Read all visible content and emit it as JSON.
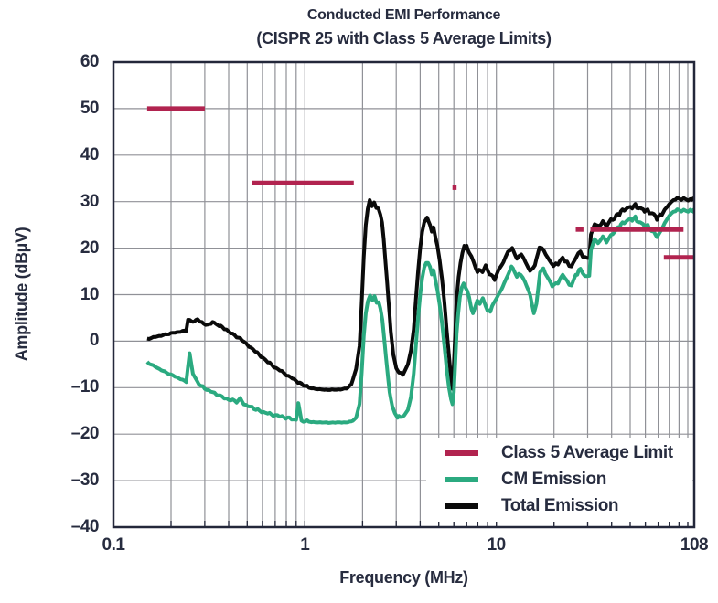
{
  "figure": {
    "title": "Conducted EMI Performance",
    "subtitle": "(CISPR 25 with Class 5 Average Limits)"
  },
  "chart_data": {
    "type": "line",
    "title": "Conducted EMI Performance",
    "subtitle": "(CISPR 25 with Class 5 Average Limits)",
    "xlabel": "Frequency (MHz)",
    "ylabel": "Amplitude (dBµV)",
    "x_scale": "log",
    "xlim": [
      0.1,
      108
    ],
    "ylim": [
      -40,
      60
    ],
    "grid": true,
    "colors": {
      "limit": "#b1234f",
      "cm": "#2baa80",
      "total": "#0a0a0a",
      "text": "#272c3f",
      "grid": "#909197",
      "axis": "#23273a"
    },
    "x_ticks": [
      {
        "value": 0.1,
        "label": "0.1"
      },
      {
        "value": 1,
        "label": "1"
      },
      {
        "value": 10,
        "label": "10"
      },
      {
        "value": 108,
        "label": "108"
      }
    ],
    "y_ticks": [
      {
        "value": 60,
        "label": "60"
      },
      {
        "value": 50,
        "label": "50"
      },
      {
        "value": 40,
        "label": "40"
      },
      {
        "value": 30,
        "label": "30"
      },
      {
        "value": 20,
        "label": "20"
      },
      {
        "value": 10,
        "label": "10"
      },
      {
        "value": 0,
        "label": "0"
      },
      {
        "value": -10,
        "label": "–10"
      },
      {
        "value": -20,
        "label": "–20"
      },
      {
        "value": -30,
        "label": "–30"
      },
      {
        "value": -40,
        "label": "–40"
      }
    ],
    "legend_position": "bottom-right-inside",
    "legend": [
      {
        "label": "Class 5 Average Limit",
        "color": "#b1234f"
      },
      {
        "label": "CM Emission",
        "color": "#2baa80"
      },
      {
        "label": "Total Emission",
        "color": "#0a0a0a"
      }
    ],
    "limit_segments": [
      {
        "from": 0.15,
        "to": 0.3,
        "level": 50
      },
      {
        "from": 0.53,
        "to": 1.8,
        "level": 34
      },
      {
        "from": 5.9,
        "to": 6.2,
        "level": 33
      },
      {
        "from": 26,
        "to": 28.5,
        "level": 24
      },
      {
        "from": 31,
        "to": 95,
        "level": 24
      },
      {
        "from": 75,
        "to": 108,
        "level": 18
      }
    ],
    "series": [
      {
        "name": "Total Emission",
        "color": "#0a0a0a",
        "points": [
          [
            0.15,
            0.5
          ],
          [
            0.17,
            1.0
          ],
          [
            0.19,
            1.5
          ],
          [
            0.22,
            2.0
          ],
          [
            0.24,
            2.3
          ],
          [
            0.245,
            4.6
          ],
          [
            0.26,
            4.2
          ],
          [
            0.275,
            4.6
          ],
          [
            0.29,
            4.0
          ],
          [
            0.31,
            3.4
          ],
          [
            0.33,
            4.1
          ],
          [
            0.35,
            3.5
          ],
          [
            0.37,
            3.0
          ],
          [
            0.4,
            2.2
          ],
          [
            0.42,
            1.4
          ],
          [
            0.44,
            1.0
          ],
          [
            0.47,
            0.2
          ],
          [
            0.51,
            -1.0
          ],
          [
            0.55,
            -2.2
          ],
          [
            0.59,
            -3.2
          ],
          [
            0.64,
            -4.5
          ],
          [
            0.69,
            -5.5
          ],
          [
            0.74,
            -6.3
          ],
          [
            0.8,
            -7.2
          ],
          [
            0.86,
            -8.0
          ],
          [
            0.92,
            -8.8
          ],
          [
            0.98,
            -9.4
          ],
          [
            1.05,
            -10.0
          ],
          [
            1.2,
            -10.4
          ],
          [
            1.35,
            -10.5
          ],
          [
            1.5,
            -10.4
          ],
          [
            1.65,
            -10.2
          ],
          [
            1.75,
            -9.3
          ],
          [
            1.85,
            -6.0
          ],
          [
            1.93,
            -1.0
          ],
          [
            1.98,
            8.0
          ],
          [
            2.03,
            18.0
          ],
          [
            2.08,
            25.0
          ],
          [
            2.13,
            28.5
          ],
          [
            2.18,
            30.3
          ],
          [
            2.24,
            29.0
          ],
          [
            2.3,
            29.8
          ],
          [
            2.36,
            28.6
          ],
          [
            2.42,
            28.9
          ],
          [
            2.48,
            27.2
          ],
          [
            2.53,
            25.5
          ],
          [
            2.58,
            22.0
          ],
          [
            2.65,
            16.0
          ],
          [
            2.73,
            9.0
          ],
          [
            2.81,
            2.0
          ],
          [
            2.9,
            -3.0
          ],
          [
            3.0,
            -5.8
          ],
          [
            3.1,
            -6.8
          ],
          [
            3.2,
            -7.0
          ],
          [
            3.3,
            -6.7
          ],
          [
            3.45,
            -5.0
          ],
          [
            3.58,
            -2.0
          ],
          [
            3.7,
            2.5
          ],
          [
            3.8,
            9.0
          ],
          [
            3.9,
            15.0
          ],
          [
            4.0,
            20.0
          ],
          [
            4.1,
            23.5
          ],
          [
            4.2,
            25.5
          ],
          [
            4.35,
            26.6
          ],
          [
            4.5,
            25.0
          ],
          [
            4.6,
            23.5
          ],
          [
            4.7,
            24.5
          ],
          [
            4.8,
            22.5
          ],
          [
            4.92,
            20.5
          ],
          [
            5.05,
            17.5
          ],
          [
            5.2,
            13.5
          ],
          [
            5.35,
            8.5
          ],
          [
            5.5,
            2.5
          ],
          [
            5.65,
            -3.0
          ],
          [
            5.8,
            -8.0
          ],
          [
            5.9,
            -10.2
          ],
          [
            6.0,
            -5.0
          ],
          [
            6.1,
            2.0
          ],
          [
            6.2,
            9.0
          ],
          [
            6.35,
            13.8
          ],
          [
            6.5,
            16.8
          ],
          [
            6.65,
            19.0
          ],
          [
            6.8,
            20.5
          ],
          [
            7.0,
            20.3
          ],
          [
            7.2,
            19.0
          ],
          [
            7.4,
            18.4
          ],
          [
            7.8,
            15.7
          ],
          [
            8.3,
            14.8
          ],
          [
            8.8,
            16.1
          ],
          [
            9.2,
            14.4
          ],
          [
            9.8,
            13.4
          ],
          [
            10.3,
            15.4
          ],
          [
            10.9,
            17.0
          ],
          [
            11.5,
            19.3
          ],
          [
            12.1,
            20.0
          ],
          [
            12.8,
            17.7
          ],
          [
            13.5,
            18.7
          ],
          [
            14.2,
            17.0
          ],
          [
            15.0,
            15.1
          ],
          [
            15.9,
            16.4
          ],
          [
            16.8,
            20.2
          ],
          [
            17.7,
            19.3
          ],
          [
            18.9,
            17.4
          ],
          [
            19.9,
            16.1
          ],
          [
            21.0,
            16.7
          ],
          [
            22.2,
            18.0
          ],
          [
            23.4,
            17.0
          ],
          [
            24.7,
            16.1
          ],
          [
            26.1,
            18.0
          ],
          [
            27.5,
            19.0
          ],
          [
            29.0,
            18.0
          ],
          [
            30.6,
            18.3
          ],
          [
            31.2,
            22.9
          ],
          [
            32.6,
            25.2
          ],
          [
            33.8,
            24.6
          ],
          [
            36.0,
            25.6
          ],
          [
            37.6,
            24.9
          ],
          [
            39.7,
            25.9
          ],
          [
            42.3,
            26.9
          ],
          [
            44.7,
            27.8
          ],
          [
            47.5,
            28.5
          ],
          [
            50.3,
            28.8
          ],
          [
            53.2,
            29.1
          ],
          [
            56.3,
            28.5
          ],
          [
            59.5,
            28.2
          ],
          [
            62.9,
            27.8
          ],
          [
            66.5,
            27.2
          ],
          [
            69.0,
            26.5
          ],
          [
            71.6,
            26.9
          ],
          [
            75.8,
            28.2
          ],
          [
            80.0,
            29.5
          ],
          [
            86.1,
            30.5
          ],
          [
            92.6,
            30.8
          ],
          [
            97.8,
            30.5
          ],
          [
            103.0,
            30.1
          ],
          [
            106.6,
            30.8
          ],
          [
            108.0,
            30.3
          ]
        ]
      },
      {
        "name": "CM Emission",
        "color": "#2baa80",
        "points": [
          [
            0.15,
            -4.5
          ],
          [
            0.17,
            -5.8
          ],
          [
            0.19,
            -6.8
          ],
          [
            0.215,
            -7.8
          ],
          [
            0.24,
            -8.7
          ],
          [
            0.25,
            -2.6
          ],
          [
            0.26,
            -7.0
          ],
          [
            0.28,
            -9.3
          ],
          [
            0.3,
            -10.2
          ],
          [
            0.33,
            -11.0
          ],
          [
            0.36,
            -11.8
          ],
          [
            0.4,
            -12.5
          ],
          [
            0.44,
            -13.0
          ],
          [
            0.46,
            -12.4
          ],
          [
            0.48,
            -13.6
          ],
          [
            0.53,
            -14.3
          ],
          [
            0.58,
            -15.0
          ],
          [
            0.64,
            -15.5
          ],
          [
            0.7,
            -16.0
          ],
          [
            0.76,
            -16.3
          ],
          [
            0.83,
            -16.6
          ],
          [
            0.9,
            -16.9
          ],
          [
            0.925,
            -13.3
          ],
          [
            0.96,
            -17.1
          ],
          [
            1.05,
            -17.3
          ],
          [
            1.2,
            -17.5
          ],
          [
            1.4,
            -17.5
          ],
          [
            1.6,
            -17.5
          ],
          [
            1.75,
            -17.3
          ],
          [
            1.85,
            -16.5
          ],
          [
            1.93,
            -13.5
          ],
          [
            1.98,
            -7.0
          ],
          [
            2.03,
            1.0
          ],
          [
            2.08,
            6.0
          ],
          [
            2.13,
            8.5
          ],
          [
            2.19,
            9.8
          ],
          [
            2.25,
            8.8
          ],
          [
            2.31,
            9.4
          ],
          [
            2.37,
            8.2
          ],
          [
            2.43,
            8.6
          ],
          [
            2.48,
            7.0
          ],
          [
            2.54,
            4.5
          ],
          [
            2.61,
            -0.5
          ],
          [
            2.69,
            -6.0
          ],
          [
            2.77,
            -11.0
          ],
          [
            2.86,
            -14.0
          ],
          [
            2.95,
            -15.5
          ],
          [
            3.05,
            -16.2
          ],
          [
            3.15,
            -16.4
          ],
          [
            3.3,
            -16.0
          ],
          [
            3.45,
            -14.8
          ],
          [
            3.58,
            -12.0
          ],
          [
            3.7,
            -7.0
          ],
          [
            3.8,
            -1.0
          ],
          [
            3.9,
            5.0
          ],
          [
            4.0,
            10.0
          ],
          [
            4.1,
            13.5
          ],
          [
            4.2,
            15.8
          ],
          [
            4.3,
            16.8
          ],
          [
            4.4,
            17.2
          ],
          [
            4.5,
            16.0
          ],
          [
            4.6,
            14.3
          ],
          [
            4.7,
            15.3
          ],
          [
            4.8,
            13.3
          ],
          [
            4.92,
            11.0
          ],
          [
            5.05,
            8.0
          ],
          [
            5.2,
            4.0
          ],
          [
            5.35,
            -1.0
          ],
          [
            5.5,
            -6.0
          ],
          [
            5.65,
            -10.0
          ],
          [
            5.8,
            -12.5
          ],
          [
            5.9,
            -13.5
          ],
          [
            6.0,
            -11.0
          ],
          [
            6.1,
            -5.0
          ],
          [
            6.2,
            1.5
          ],
          [
            6.32,
            6.0
          ],
          [
            6.45,
            9.5
          ],
          [
            6.6,
            11.5
          ],
          [
            6.75,
            12.4
          ],
          [
            6.9,
            12.0
          ],
          [
            7.05,
            10.8
          ],
          [
            7.2,
            9.5
          ],
          [
            7.4,
            7.0
          ],
          [
            7.55,
            6.0
          ],
          [
            7.75,
            7.3
          ],
          [
            7.95,
            8.8
          ],
          [
            8.2,
            8.0
          ],
          [
            8.5,
            9.3
          ],
          [
            8.8,
            7.5
          ],
          [
            9.0,
            6.5
          ],
          [
            9.3,
            6.8
          ],
          [
            9.7,
            8.2
          ],
          [
            10.1,
            9.5
          ],
          [
            10.6,
            11.0
          ],
          [
            11.2,
            13.2
          ],
          [
            11.8,
            15.3
          ],
          [
            12.2,
            15.8
          ],
          [
            12.8,
            13.8
          ],
          [
            13.4,
            14.5
          ],
          [
            14.1,
            12.8
          ],
          [
            15.0,
            10.0
          ],
          [
            15.7,
            6.0
          ],
          [
            16.2,
            8.0
          ],
          [
            16.9,
            14.8
          ],
          [
            17.6,
            15.3
          ],
          [
            18.8,
            13.2
          ],
          [
            20.0,
            11.8
          ],
          [
            21.0,
            12.6
          ],
          [
            22.2,
            14.3
          ],
          [
            23.4,
            13.0
          ],
          [
            24.7,
            12.0
          ],
          [
            26.0,
            14.3
          ],
          [
            27.5,
            15.3
          ],
          [
            29.0,
            14.0
          ],
          [
            30.6,
            14.5
          ],
          [
            31.2,
            19.5
          ],
          [
            32.6,
            22.0
          ],
          [
            34.0,
            21.0
          ],
          [
            36.0,
            22.5
          ],
          [
            37.6,
            21.5
          ],
          [
            39.7,
            22.5
          ],
          [
            42.3,
            24.0
          ],
          [
            44.7,
            25.0
          ],
          [
            47.5,
            25.8
          ],
          [
            50.3,
            26.2
          ],
          [
            53.2,
            26.4
          ],
          [
            56.3,
            25.4
          ],
          [
            59.5,
            25.0
          ],
          [
            63.0,
            24.4
          ],
          [
            66.5,
            23.4
          ],
          [
            69.0,
            22.4
          ],
          [
            71.6,
            23.4
          ],
          [
            75.8,
            25.4
          ],
          [
            80.0,
            27.0
          ],
          [
            86.1,
            28.0
          ],
          [
            92.6,
            28.3
          ],
          [
            97.8,
            28.0
          ],
          [
            103.0,
            27.8
          ],
          [
            106.6,
            28.3
          ],
          [
            108.0,
            28.0
          ]
        ]
      }
    ]
  }
}
